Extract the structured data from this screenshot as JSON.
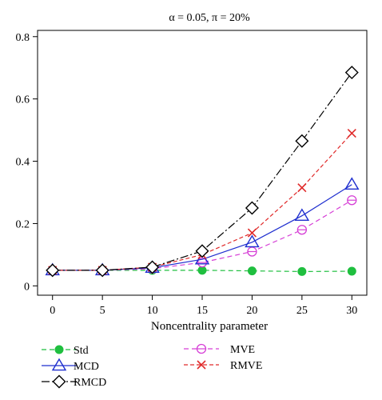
{
  "chart_data": {
    "type": "line",
    "title": "α = 0.05, π = 20%",
    "xlabel": "Noncentrality parameter",
    "ylabel": "",
    "x": [
      0,
      5,
      10,
      15,
      20,
      25,
      30
    ],
    "xlim": [
      -1.5,
      31.5
    ],
    "ylim": [
      -0.03,
      0.82
    ],
    "xticks": [
      "0",
      "5",
      "10",
      "15",
      "20",
      "25",
      "30"
    ],
    "yticks": [
      "0",
      "0.2",
      "0.4",
      "0.6",
      "0.8"
    ],
    "grid": false,
    "legend_position": "bottom",
    "series": [
      {
        "name": "Std",
        "values": [
          0.05,
          0.05,
          0.05,
          0.05,
          0.048,
          0.046,
          0.047
        ],
        "color": "#1fbf3f",
        "dash": "6,4",
        "marker": "filled-circle"
      },
      {
        "name": "MCD",
        "values": [
          0.05,
          0.05,
          0.058,
          0.085,
          0.14,
          0.225,
          0.325
        ],
        "color": "#1f2fcf",
        "dash": "none",
        "marker": "triangle"
      },
      {
        "name": "RMCD",
        "values": [
          0.05,
          0.05,
          0.06,
          0.112,
          0.25,
          0.465,
          0.685
        ],
        "color": "#000000",
        "dash": "10,3,2,3",
        "marker": "diamond"
      },
      {
        "name": "MVE",
        "values": [
          0.05,
          0.05,
          0.055,
          0.075,
          0.11,
          0.18,
          0.275
        ],
        "color": "#d63fd6",
        "dash": "6,4",
        "marker": "open-circle"
      },
      {
        "name": "RMVE",
        "values": [
          0.05,
          0.05,
          0.06,
          0.1,
          0.17,
          0.315,
          0.49
        ],
        "color": "#e02a2a",
        "dash": "5,3",
        "marker": "x"
      }
    ],
    "legend_order": [
      [
        "Std",
        "MCD",
        "RMCD"
      ],
      [
        "MVE",
        "RMVE"
      ]
    ]
  }
}
